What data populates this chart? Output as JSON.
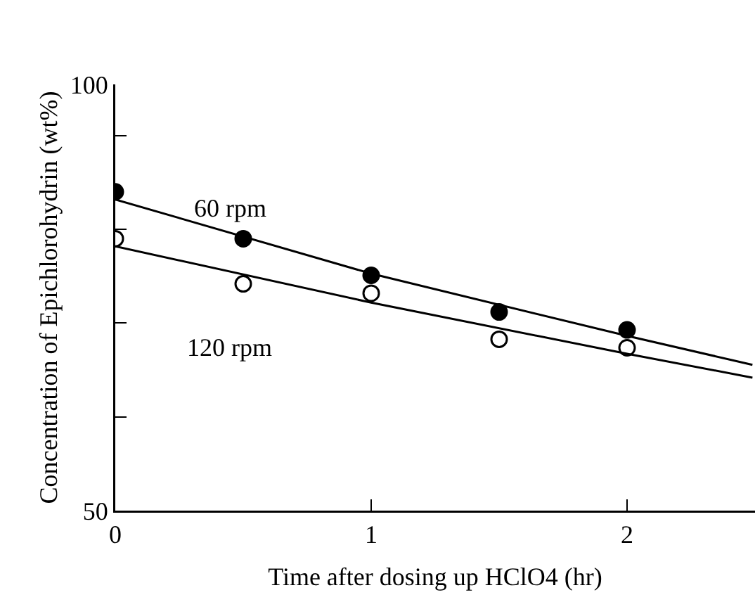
{
  "chart_data": {
    "type": "scatter",
    "xlabel": "Time after dosing up HClO4 (hr)",
    "ylabel": "Concentration of Epichlorohydrin (wt%)",
    "xlim": [
      0,
      2.5
    ],
    "xticks": [
      0,
      1,
      2
    ],
    "ylim": [
      50,
      100
    ],
    "yticks": [
      50,
      {
        "value": 61,
        "label": null
      },
      {
        "value": 72,
        "label": null
      },
      {
        "value": 83,
        "label": null
      },
      {
        "value": 94,
        "label": null
      },
      100
    ],
    "grid": false,
    "legend": false,
    "marker": "circle",
    "series": [
      {
        "name": "60 rpm",
        "color": "#000000",
        "x": [
          0,
          0.5,
          1,
          1.5,
          2
        ],
        "values": [
          87.4,
          81.9,
          77.6,
          73.3,
          71.2
        ]
      },
      {
        "name": "120 rpm",
        "color": "#ffffff",
        "x": [
          0,
          0.5,
          1,
          1.5,
          2
        ],
        "values": [
          81.9,
          76.6,
          75.5,
          70.1,
          69.1
        ]
      },
      {
        "type": "line",
        "color": "#000000",
        "marker": "none",
        "line_style": "solid",
        "x": [
          0,
          1,
          2,
          2.49
        ],
        "values": [
          86.5,
          77.8,
          70.5,
          67.1
        ]
      },
      {
        "type": "line",
        "color": "#000000",
        "marker": "none",
        "line_style": "solid",
        "x": [
          0,
          1,
          2,
          2.49
        ],
        "values": [
          81.0,
          74.4,
          68.4,
          65.6
        ]
      }
    ]
  }
}
